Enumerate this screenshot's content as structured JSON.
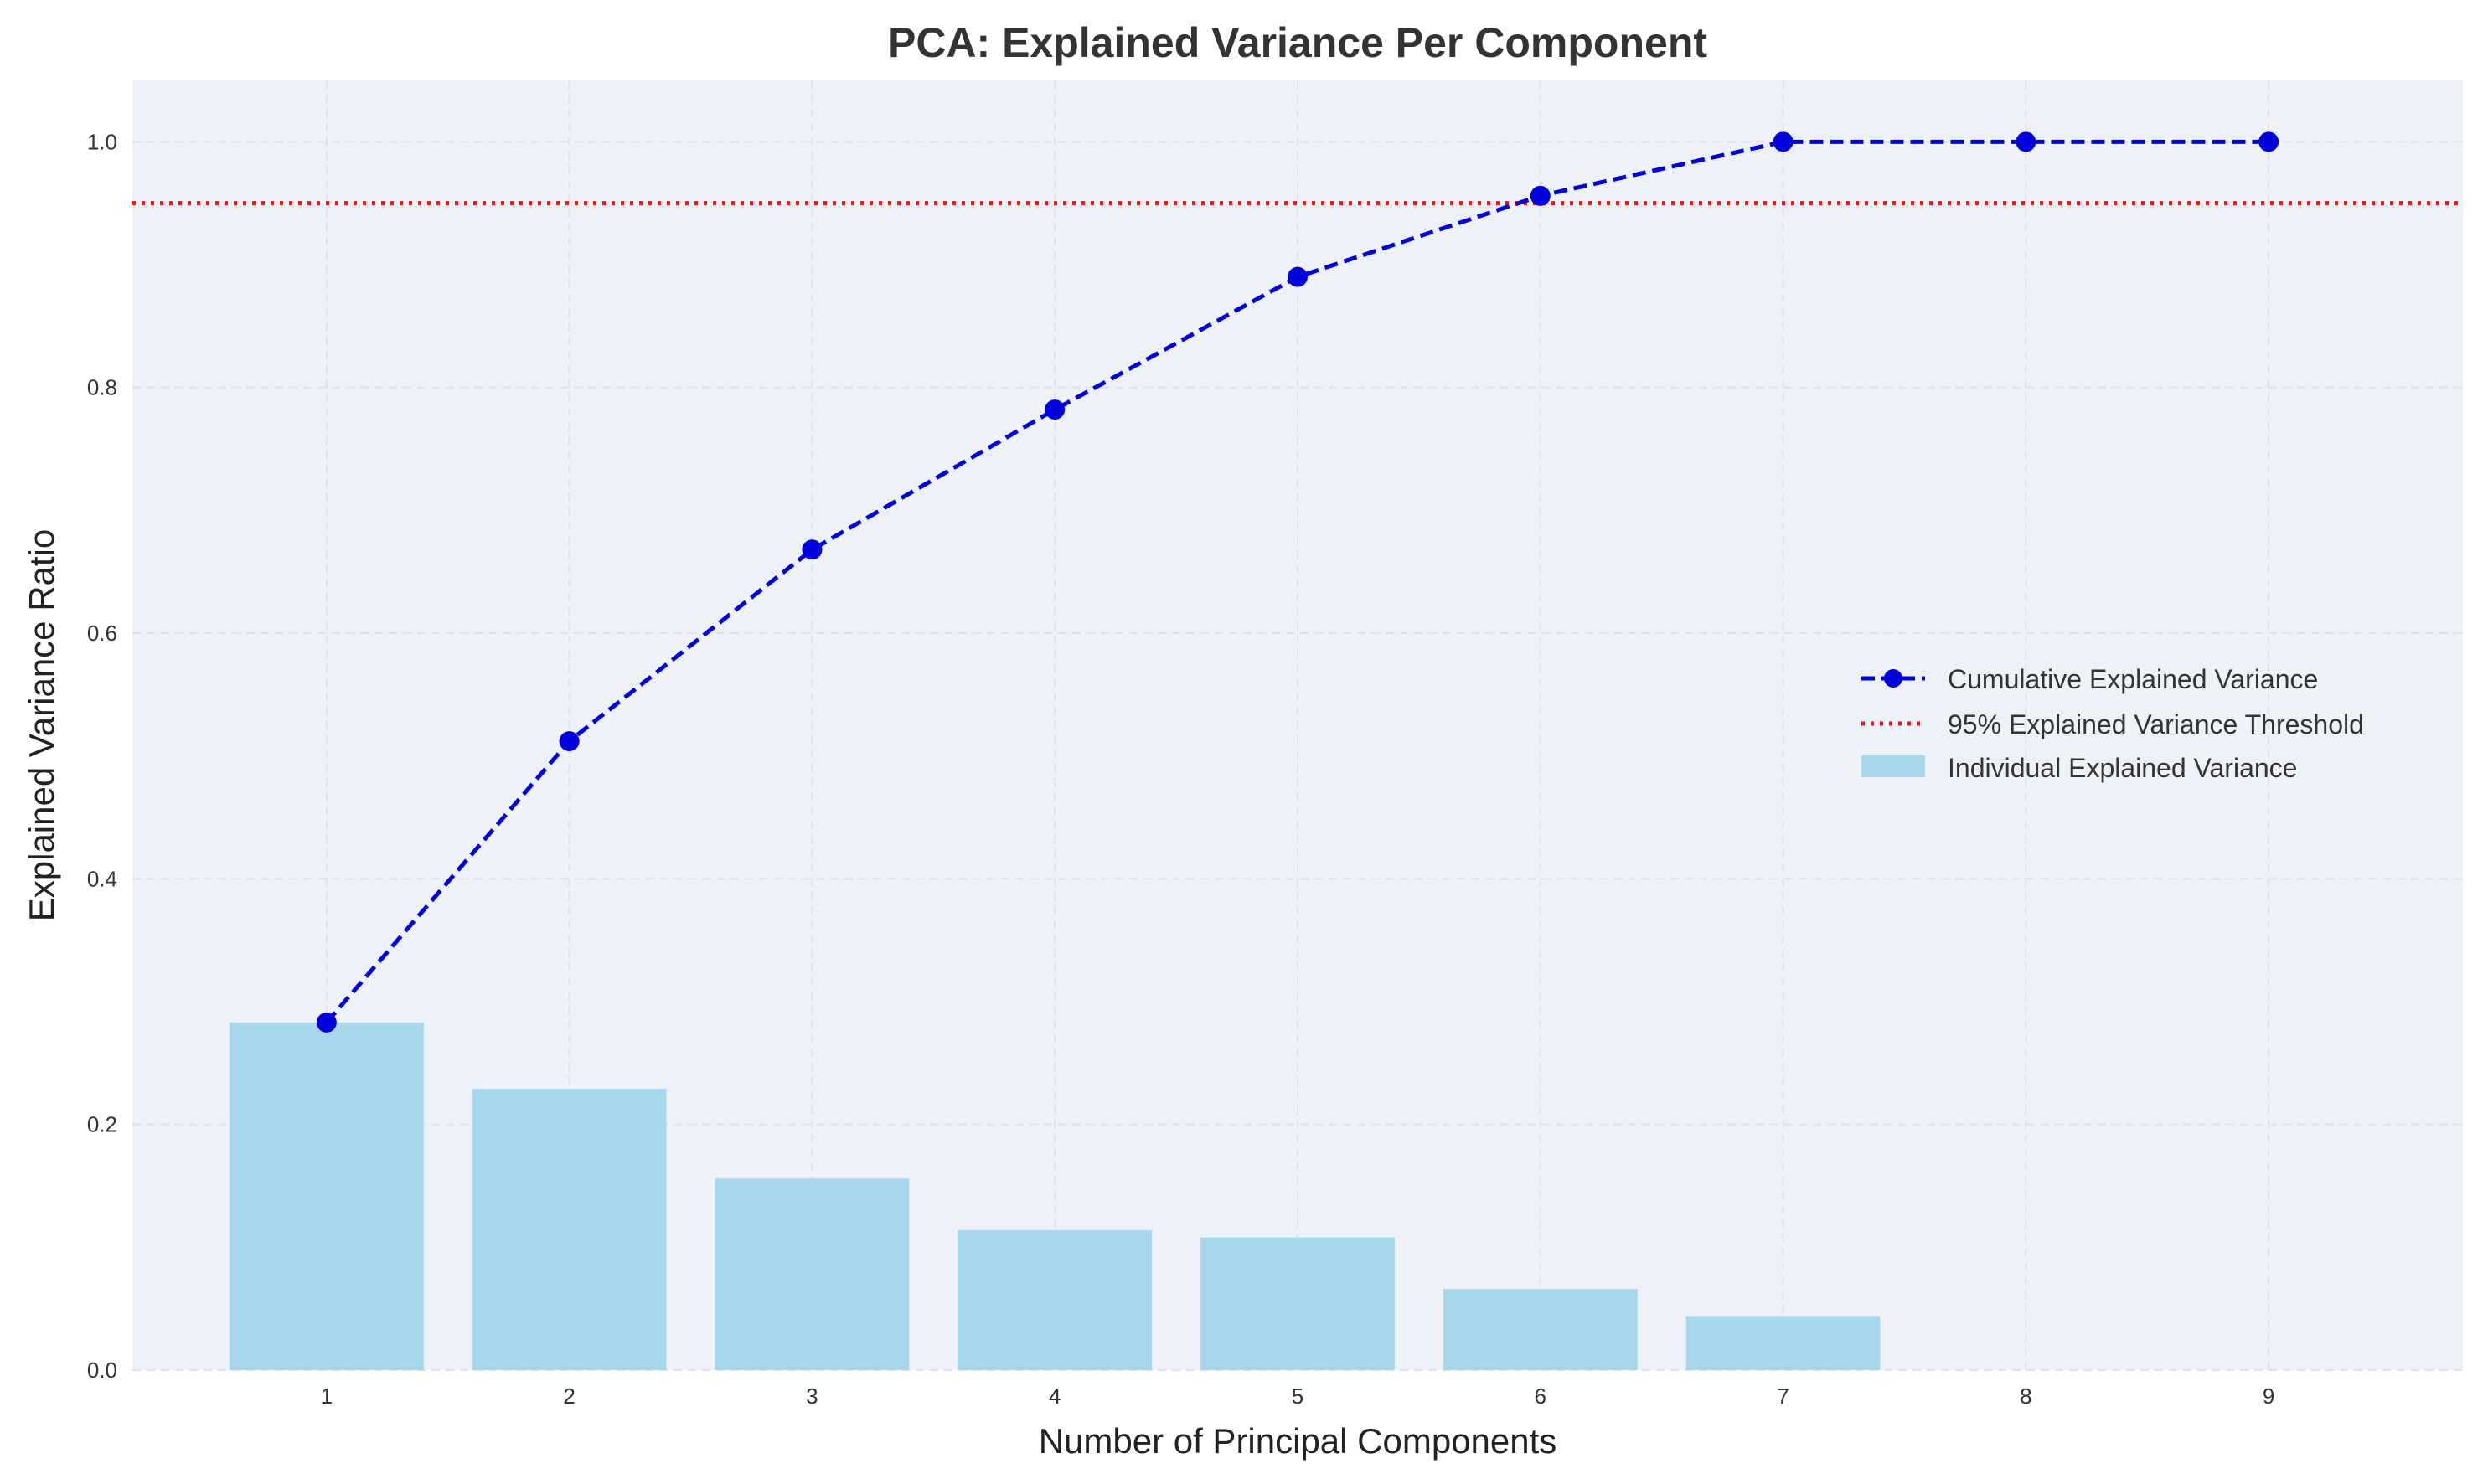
{
  "chart_data": {
    "type": "bar",
    "title": "PCA: Explained Variance Per Component",
    "xlabel": "Number of Principal Components",
    "ylabel": "Explained Variance Ratio",
    "categories": [
      "1",
      "2",
      "3",
      "4",
      "5",
      "6",
      "7",
      "8",
      "9"
    ],
    "x": [
      1,
      2,
      3,
      4,
      5,
      6,
      7,
      8,
      9
    ],
    "xlim": [
      0.2,
      9.8
    ],
    "ylim": [
      0.0,
      1.05
    ],
    "yticks": [
      0.0,
      0.2,
      0.4,
      0.6,
      0.8,
      1.0
    ],
    "ytick_labels": [
      "0.0",
      "0.2",
      "0.4",
      "0.6",
      "0.8",
      "1.0"
    ],
    "grid": true,
    "legend_position": "center-right",
    "series": [
      {
        "name": "Cumulative Explained Variance",
        "type": "line",
        "style": "dashed",
        "marker": "circle",
        "color": "#0000dd",
        "values": [
          0.283,
          0.512,
          0.668,
          0.782,
          0.89,
          0.956,
          1.0,
          1.0,
          1.0
        ]
      },
      {
        "name": "95% Explained Variance Threshold",
        "type": "hline",
        "style": "dotted",
        "color": "#ee1111",
        "value": 0.95
      },
      {
        "name": "Individual Explained Variance",
        "type": "bar",
        "color": "#a6d7ec",
        "values": [
          0.283,
          0.229,
          0.156,
          0.114,
          0.108,
          0.066,
          0.044,
          0.0,
          0.0
        ]
      }
    ]
  },
  "colors": {
    "plot_background": "#eef2f8",
    "grid": "#dde1e8",
    "bar": "#a6d7ec",
    "line": "#0000dd",
    "threshold": "#ee1111"
  }
}
